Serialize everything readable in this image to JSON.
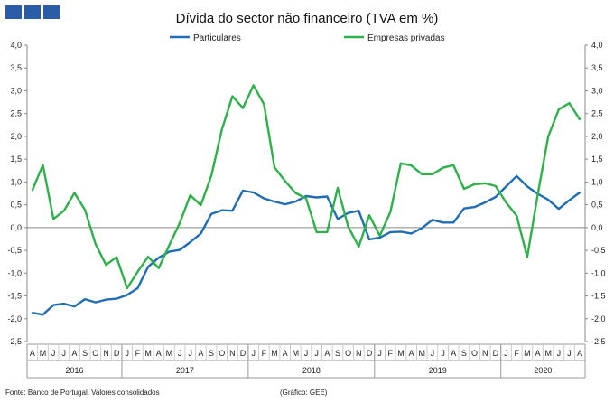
{
  "logo_colors": [
    "#2a5ca8"
  ],
  "chart_data": {
    "type": "line",
    "title": "Dívida do sector não financeiro (TVA em %)",
    "ylim": [
      -2.5,
      4.0
    ],
    "y_ticks": [
      "4,0",
      "3,5",
      "3,0",
      "2,5",
      "2,0",
      "1,5",
      "1,0",
      "0,5",
      "0,0",
      "-0,5",
      "-1,0",
      "-1,5",
      "-2,0",
      "-2,5"
    ],
    "legend_position": "top",
    "grid": false,
    "x_month_labels": [
      "A",
      "M",
      "J",
      "J",
      "A",
      "S",
      "O",
      "N",
      "D",
      "J",
      "F",
      "M",
      "A",
      "M",
      "J",
      "J",
      "A",
      "S",
      "O",
      "N",
      "D",
      "J",
      "F",
      "M",
      "A",
      "M",
      "J",
      "J",
      "A",
      "S",
      "O",
      "N",
      "D",
      "J",
      "F",
      "M",
      "A",
      "M",
      "J",
      "J",
      "A",
      "S",
      "O",
      "N",
      "D",
      "J",
      "F",
      "M",
      "A",
      "M",
      "J",
      "J",
      "A"
    ],
    "year_groups": [
      {
        "label": "2016",
        "months": 9
      },
      {
        "label": "2017",
        "months": 12
      },
      {
        "label": "2018",
        "months": 12
      },
      {
        "label": "2019",
        "months": 12
      },
      {
        "label": "2020",
        "months": 8
      }
    ],
    "series": [
      {
        "name": "Particulares",
        "color": "#1f6db5",
        "values": [
          -1.87,
          -1.91,
          -1.7,
          -1.67,
          -1.73,
          -1.57,
          -1.64,
          -1.58,
          -1.56,
          -1.48,
          -1.33,
          -0.86,
          -0.66,
          -0.53,
          -0.49,
          -0.32,
          -0.13,
          0.3,
          0.38,
          0.37,
          0.81,
          0.77,
          0.64,
          0.57,
          0.51,
          0.57,
          0.69,
          0.66,
          0.68,
          0.19,
          0.32,
          0.37,
          -0.26,
          -0.22,
          -0.1,
          -0.09,
          -0.13,
          -0.01,
          0.17,
          0.11,
          0.11,
          0.42,
          0.45,
          0.55,
          0.67,
          0.9,
          1.13,
          0.9,
          0.74,
          0.61,
          0.41,
          0.6,
          0.77
        ]
      },
      {
        "name": "Empresas privadas",
        "color": "#2db24a",
        "values": [
          0.82,
          1.37,
          0.19,
          0.37,
          0.76,
          0.39,
          -0.36,
          -0.82,
          -0.65,
          -1.33,
          -0.97,
          -0.64,
          -0.89,
          -0.39,
          0.1,
          0.71,
          0.49,
          1.14,
          2.15,
          2.88,
          2.62,
          3.12,
          2.7,
          1.32,
          1.02,
          0.76,
          0.64,
          -0.1,
          -0.1,
          0.87,
          0.02,
          -0.42,
          0.27,
          -0.18,
          0.34,
          1.41,
          1.36,
          1.17,
          1.17,
          1.31,
          1.37,
          0.85,
          0.95,
          0.97,
          0.91,
          0.55,
          0.26,
          -0.65,
          0.72,
          2.0,
          2.59,
          2.73,
          2.37
        ]
      }
    ]
  },
  "footer": {
    "source": "Fonte: Banco de Portugal. Valores consolidados",
    "credit": "(Gráfico: GEE)"
  }
}
